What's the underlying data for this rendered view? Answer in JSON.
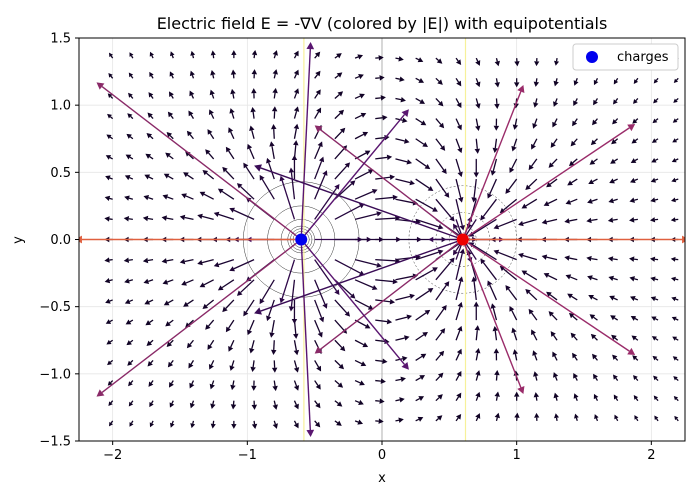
{
  "chart_data": {
    "type": "quiver",
    "title": "Electric field E = -∇V (colored by |E|) with equipotentials",
    "xlabel": "x",
    "ylabel": "y",
    "xlim": [
      -2.25,
      2.25
    ],
    "ylim": [
      -1.5,
      1.5
    ],
    "xticks": [
      -2,
      -1,
      0,
      1,
      2
    ],
    "yticks": [
      -1.5,
      -1.0,
      -0.5,
      0.0,
      0.5,
      1.0,
      1.5
    ],
    "grid": true,
    "legend": {
      "placement": "top-right",
      "entries": [
        {
          "label": "charges",
          "color": "#0000ee"
        }
      ]
    },
    "charges": [
      {
        "x": -0.6,
        "y": 0.0,
        "color": "#0000ee"
      },
      {
        "x": 0.6,
        "y": 0.0,
        "color": "#ee0000"
      }
    ],
    "colors": {
      "low": "#0d0221",
      "mid": "#4b0c6b",
      "high": "#b5366b",
      "top": "#ed6a3c"
    }
  }
}
